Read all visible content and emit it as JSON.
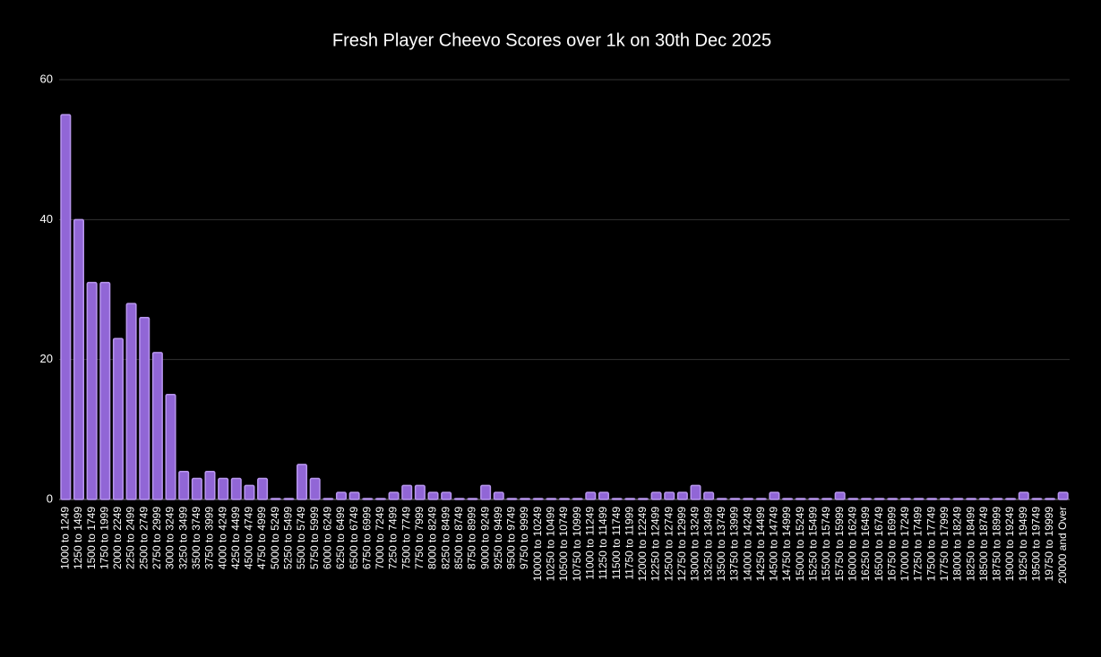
{
  "chart_data": {
    "type": "bar",
    "title": "Fresh Player Cheevo Scores over 1k on 30th Dec 2025",
    "categories": [
      "1000 to 1249",
      "1250 to 1499",
      "1500 to 1749",
      "1750 to 1999",
      "2000 to 2249",
      "2250 to 2499",
      "2500 to 2749",
      "2750 to 2999",
      "3000 to 3249",
      "3250 to 3499",
      "3500 to 3749",
      "3750 to 3999",
      "4000 to 4249",
      "4250 to 4499",
      "4500 to 4749",
      "4750 to 4999",
      "5000 to 5249",
      "5250 to 5499",
      "5500 to 5749",
      "5750 to 5999",
      "6000 to 6249",
      "6250 to 6499",
      "6500 to 6749",
      "6750 to 6999",
      "7000 to 7249",
      "7250 to 7499",
      "7500 to 7749",
      "7750 to 7999",
      "8000 to 8249",
      "8250 to 8499",
      "8500 to 8749",
      "8750 to 8999",
      "9000 to 9249",
      "9250 to 9499",
      "9500 to 9749",
      "9750 to 9999",
      "10000 to 10249",
      "10250 to 10499",
      "10500 to 10749",
      "10750 to 10999",
      "11000 to 11249",
      "11250 to 11499",
      "11500 to 11749",
      "11750 to 11999",
      "12000 to 12249",
      "12250 to 12499",
      "12500 to 12749",
      "12750 to 12999",
      "13000 to 13249",
      "13250 to 13499",
      "13500 to 13749",
      "13750 to 13999",
      "14000 to 14249",
      "14250 to 14499",
      "14500 to 14749",
      "14750 to 14999",
      "15000 to 15249",
      "15250 to 15499",
      "15500 to 15749",
      "15750 to 15999",
      "16000 to 16249",
      "16250 to 16499",
      "16500 to 16749",
      "16750 to 16999",
      "17000 to 17249",
      "17250 to 17499",
      "17500 to 17749",
      "17750 to 17999",
      "18000 to 18249",
      "18250 to 18499",
      "18500 to 18749",
      "18750 to 18999",
      "19000 to 19249",
      "19250 to 19499",
      "19500 to 19749",
      "19750 to 19999",
      "20000 and Over"
    ],
    "values": [
      55,
      40,
      31,
      31,
      23,
      28,
      26,
      21,
      15,
      4,
      3,
      4,
      3,
      3,
      2,
      3,
      0,
      0,
      5,
      3,
      0,
      1,
      1,
      0,
      0,
      1,
      2,
      2,
      1,
      1,
      0,
      0,
      2,
      1,
      0,
      0,
      0,
      0,
      0,
      0,
      1,
      1,
      0,
      0,
      0,
      1,
      1,
      1,
      2,
      1,
      0,
      0,
      0,
      0,
      1,
      0,
      0,
      0,
      0,
      1,
      0,
      0,
      0,
      0,
      0,
      0,
      0,
      0,
      0,
      0,
      0,
      0,
      0,
      1,
      0,
      0,
      1
    ],
    "color": "#9166d6",
    "ylim": [
      0,
      60
    ],
    "yticks": [
      0,
      20,
      40,
      60
    ],
    "grid": true
  }
}
